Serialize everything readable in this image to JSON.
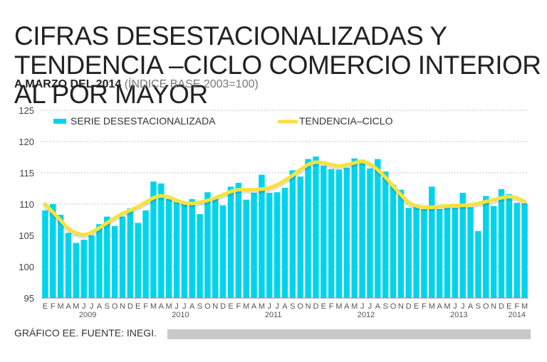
{
  "header": {
    "title": "CIFRAS DESESTACIONALIZADAS Y TENDENCIA –CICLO COMERCIO INTERIOR AL POR MAYOR",
    "subtitle_bold": "A MARZO DEL 2014",
    "subtitle_light": "(ÍNDICE BASE 2003=100)"
  },
  "footer": {
    "source": "GRÁFICO EE. FUENTE: INEGI."
  },
  "colors": {
    "bars": "#00d4ec",
    "trend": "#f8e23c",
    "grid": "#9a9a9a"
  },
  "chart_data": {
    "type": "bar",
    "title": "CIFRAS DESESTACIONALIZADAS Y TENDENCIA –CICLO COMERCIO INTERIOR AL POR MAYOR",
    "subtitle": "A MARZO DEL 2014 (ÍNDICE BASE 2003=100)",
    "ylim": [
      95,
      125
    ],
    "yticks": [
      95,
      100,
      105,
      110,
      115,
      120,
      125
    ],
    "grid": true,
    "legend": [
      "SERIE DESESTACIONALIZADA",
      "TENDENCIA–CICLO"
    ],
    "month_labels": [
      "E",
      "F",
      "M",
      "A",
      "M",
      "J",
      "J",
      "A",
      "S",
      "O",
      "N",
      "D",
      "E",
      "F",
      "M",
      "A",
      "M",
      "J",
      "J",
      "A",
      "S",
      "O",
      "N",
      "D",
      "E",
      "F",
      "M",
      "A",
      "M",
      "J",
      "J",
      "A",
      "S",
      "O",
      "N",
      "D",
      "E",
      "F",
      "M",
      "A",
      "M",
      "J",
      "J",
      "A",
      "S",
      "O",
      "N",
      "D",
      "E",
      "F",
      "M",
      "A",
      "M",
      "J",
      "J",
      "A",
      "S",
      "O",
      "N",
      "D",
      "E",
      "F",
      "M"
    ],
    "year_labels": [
      {
        "label": "2009",
        "index": 5.5
      },
      {
        "label": "2010",
        "index": 17.5
      },
      {
        "label": "2011",
        "index": 29.5
      },
      {
        "label": "2012",
        "index": 41.5
      },
      {
        "label": "2013",
        "index": 53.5
      },
      {
        "label": "2014",
        "index": 61
      }
    ],
    "series": [
      {
        "name": "SERIE DESESTACIONALIZADA",
        "kind": "bar",
        "values": [
          109.0,
          110.0,
          108.3,
          105.4,
          103.8,
          104.3,
          105.0,
          106.8,
          108.0,
          106.5,
          108.0,
          109.3,
          107.0,
          109.0,
          113.6,
          113.3,
          110.8,
          110.3,
          110.0,
          110.8,
          108.4,
          111.9,
          111.0,
          109.8,
          112.8,
          113.4,
          110.7,
          111.8,
          114.7,
          111.8,
          111.9,
          112.6,
          115.4,
          114.4,
          117.2,
          117.6,
          116.1,
          115.6,
          115.5,
          115.8,
          117.3,
          117.1,
          115.7,
          117.2,
          115.2,
          113.1,
          112.3,
          109.4,
          109.6,
          109.2,
          112.8,
          109.2,
          109.4,
          109.4,
          111.8,
          109.5,
          105.7,
          111.3,
          109.7,
          112.4,
          111.6,
          110.2,
          110.1
        ]
      },
      {
        "name": "TENDENCIA–CICLO",
        "kind": "line",
        "values": [
          110.0,
          108.7,
          107.4,
          106.1,
          105.4,
          105.1,
          105.5,
          106.2,
          107.0,
          107.8,
          108.5,
          109.0,
          109.6,
          110.3,
          111.0,
          111.3,
          111.1,
          110.6,
          110.2,
          110.1,
          110.3,
          110.6,
          111.0,
          111.5,
          112.0,
          112.3,
          112.3,
          112.3,
          112.4,
          112.6,
          113.1,
          113.8,
          114.6,
          115.5,
          116.3,
          116.7,
          116.6,
          116.3,
          116.1,
          116.3,
          116.6,
          116.8,
          116.4,
          115.5,
          114.3,
          112.9,
          111.5,
          110.3,
          109.7,
          109.5,
          109.5,
          109.6,
          109.7,
          109.8,
          109.8,
          109.9,
          110.1,
          110.4,
          110.7,
          111.0,
          111.2,
          111.0,
          110.4
        ]
      }
    ]
  }
}
